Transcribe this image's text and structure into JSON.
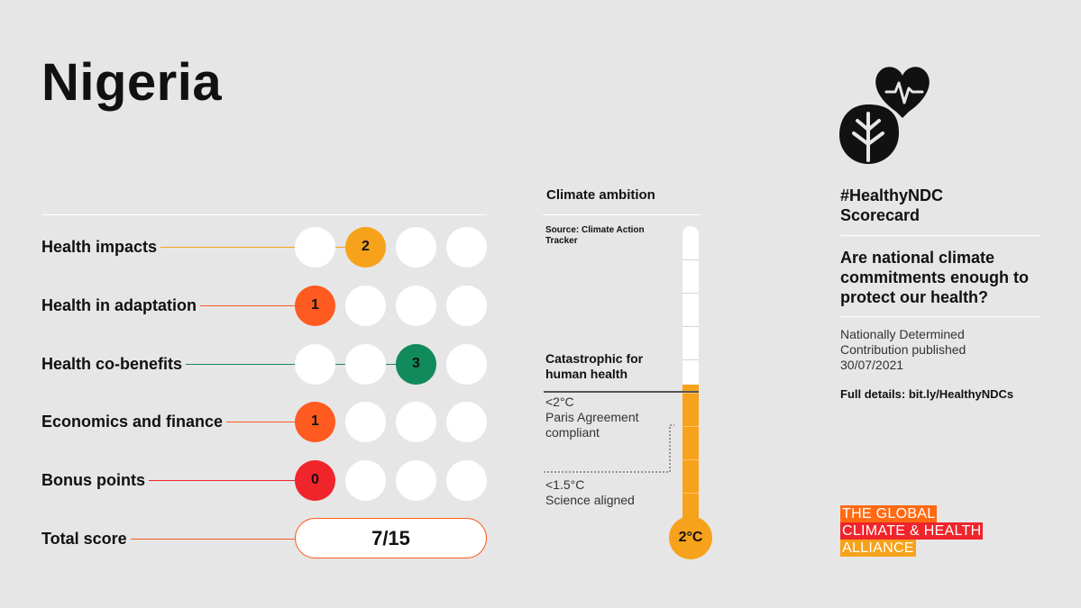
{
  "country": "Nigeria",
  "scores": [
    {
      "label": "Health impacts",
      "value": "2",
      "score": 2,
      "max": 4,
      "color": "#f7a21b"
    },
    {
      "label": "Health in adaptation",
      "value": "1",
      "score": 1,
      "max": 4,
      "color": "#ff5a1f"
    },
    {
      "label": "Health co-benefits",
      "value": "3",
      "score": 3,
      "max": 4,
      "color": "#118a5c"
    },
    {
      "label": "Economics and finance",
      "value": "1",
      "score": 1,
      "max": 4,
      "color": "#ff5a1f"
    },
    {
      "label": "Bonus points",
      "value": "0",
      "score": 0,
      "max": 4,
      "color": "#f0242b"
    }
  ],
  "total": {
    "label": "Total score",
    "value": "7/15",
    "color": "#ff5a1f"
  },
  "climate": {
    "title": "Climate ambition",
    "source": "Source: Climate Action Tracker",
    "catastrophic": "Catastrophic for human health",
    "paris_temp": "<2°C",
    "paris_text": "Paris Agreement compliant",
    "science_temp": "<1.5°C",
    "science_text": "Science aligned",
    "rating": "2°C",
    "fill_fraction": 0.49,
    "fill_color": "#f7a21b"
  },
  "sidebar": {
    "hashtag": "#HealthyNDC",
    "scorecard": "Scorecard",
    "question": "Are national climate commitments enough to protect our health?",
    "ndc_line1": "Nationally Determined",
    "ndc_line2": "Contribution published",
    "ndc_date": "30/07/2021",
    "details": "Full details: bit.ly/HealthyNDCs"
  },
  "alliance": {
    "line1": "THE GLOBAL",
    "line2": "CLIMATE & HEALTH",
    "line3": "ALLIANCE"
  },
  "logo_icon": "heart-leaf-icon"
}
